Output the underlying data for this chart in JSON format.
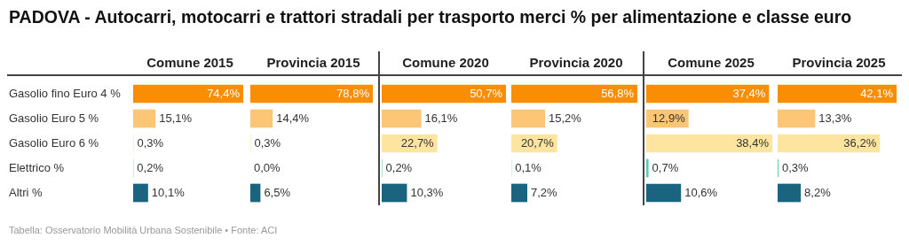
{
  "chart_data": [
    {
      "type": "other",
      "title": "PADOVA - Autocarri, motocarri e trattori stradali per trasporto merci % per alimentazione e classe euro",
      "annotations": [
        "Tabella: Osservatorio Mobilità Urbana Sostenibile • Fonte: ACI"
      ]
    },
    {
      "type": "bar",
      "orientation": "horizontal",
      "title": "Comune 2015",
      "categories": [
        "Gasolio fino Euro 4 %",
        "Gasolio Euro 5 %",
        "Gasolio Euro 6 %",
        "Elettrico %",
        "Altri %"
      ],
      "values": [
        74.4,
        15.1,
        0.3,
        0.2,
        10.1
      ],
      "value_labels": [
        "74,4%",
        "15,1%",
        "0,3%",
        "0,2%",
        "10,1%"
      ],
      "colors": [
        "#f98e05",
        "#fdc676",
        "#fde5a0",
        "#5ccbb4",
        "#1b6480"
      ],
      "xlim": [
        0,
        74.4
      ],
      "tick_labels": "y"
    },
    {
      "type": "bar",
      "orientation": "horizontal",
      "title": "Provincia 2015",
      "categories": [
        null,
        null,
        null,
        null,
        null
      ],
      "values": [
        78.8,
        14.4,
        0.3,
        0.0,
        6.5
      ],
      "value_labels": [
        "78,8%",
        "14,4%",
        "0,3%",
        "0,0%",
        "6,5%"
      ],
      "colors": [
        "#f98e05",
        "#fdc676",
        "#fde5a0",
        "#5ccbb4",
        "#1b6480"
      ],
      "xlim": [
        0,
        78.8
      ],
      "tick_labels": false
    },
    {
      "type": "bar",
      "orientation": "horizontal",
      "title": "Comune 2020",
      "categories": [
        null,
        null,
        null,
        null,
        null
      ],
      "values": [
        50.7,
        16.1,
        22.7,
        0.2,
        10.3
      ],
      "value_labels": [
        "50,7%",
        "16,1%",
        "22,7%",
        "0,2%",
        "10,3%"
      ],
      "colors": [
        "#f98e05",
        "#fdc676",
        "#fde5a0",
        "#5ccbb4",
        "#1b6480"
      ],
      "xlim": [
        0,
        50.7
      ],
      "tick_labels": false
    },
    {
      "type": "bar",
      "orientation": "horizontal",
      "title": "Provincia 2020",
      "categories": [
        null,
        null,
        null,
        null,
        null
      ],
      "values": [
        56.8,
        15.2,
        20.7,
        0.1,
        7.2
      ],
      "value_labels": [
        "56,8%",
        "15,2%",
        "20,7%",
        "0,1%",
        "7,2%"
      ],
      "colors": [
        "#f98e05",
        "#fdc676",
        "#fde5a0",
        "#5ccbb4",
        "#1b6480"
      ],
      "xlim": [
        0,
        56.8
      ],
      "tick_labels": false
    },
    {
      "type": "bar",
      "orientation": "horizontal",
      "title": "Comune 2025",
      "categories": [
        null,
        null,
        null,
        null,
        null
      ],
      "values": [
        37.4,
        12.9,
        38.4,
        0.7,
        10.6
      ],
      "value_labels": [
        "37,4%",
        "12,9%",
        "38,4%",
        "0,7%",
        "10,6%"
      ],
      "colors": [
        "#f98e05",
        "#fdc676",
        "#fde5a0",
        "#5ccbb4",
        "#1b6480"
      ],
      "xlim": [
        0,
        38.4
      ],
      "tick_labels": false
    },
    {
      "type": "bar",
      "orientation": "horizontal",
      "title": "Provincia 2025",
      "categories": [
        null,
        null,
        null,
        null,
        null
      ],
      "values": [
        42.1,
        13.3,
        36.2,
        0.3,
        8.2
      ],
      "value_labels": [
        "42,1%",
        "13,3%",
        "36,2%",
        "0,3%",
        "8,2%"
      ],
      "colors": [
        "#f98e05",
        "#fdc676",
        "#fde5a0",
        "#5ccbb4",
        "#1b6480"
      ],
      "xlim": [
        0,
        42.1
      ],
      "tick_labels": false
    }
  ]
}
